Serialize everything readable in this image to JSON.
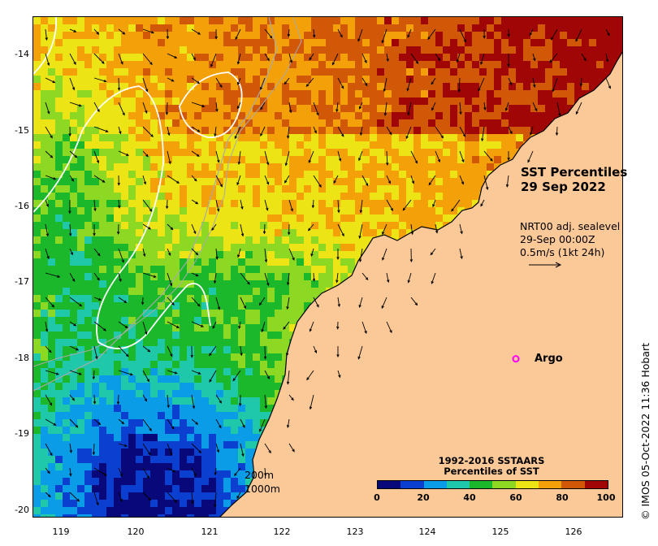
{
  "map": {
    "title_line1": "SST Percentiles",
    "title_line2": "29 Sep 2022",
    "current_note": {
      "line1": "NRT00 adj. sealevel",
      "line2": "29-Sep 00:00Z",
      "line3": "0.5m/s (1kt 24h)"
    },
    "marker_label": "Argo",
    "marker_color": "#ff00ff",
    "credit": "© IMOS 05-Oct-2022 11:36 Hobart",
    "isobaths": [
      "200m",
      "1000m"
    ],
    "x_ticks": [
      "119",
      "120",
      "121",
      "122",
      "123",
      "124",
      "125",
      "126"
    ],
    "y_ticks": [
      "-14",
      "-15",
      "-16",
      "-17",
      "-18",
      "-19",
      "-20"
    ],
    "extent": {
      "lon_min": 118.6,
      "lon_max": 126.8,
      "lat_min": -20.1,
      "lat_max": -13.5
    },
    "land_color": "#fbc898",
    "marker": {
      "lon": 125.3,
      "lat": -18.0
    }
  },
  "legend": {
    "title_line1": "1992-2016 SSTAARS",
    "title_line2": "Percentiles of SST",
    "ticks": [
      "0",
      "20",
      "40",
      "60",
      "80",
      "100"
    ],
    "colors": [
      "#08087a",
      "#0a3fd0",
      "#0b9ce8",
      "#1ec8a8",
      "#1ab82a",
      "#8cd822",
      "#ece414",
      "#f4a008",
      "#d05806",
      "#a00606"
    ]
  }
}
